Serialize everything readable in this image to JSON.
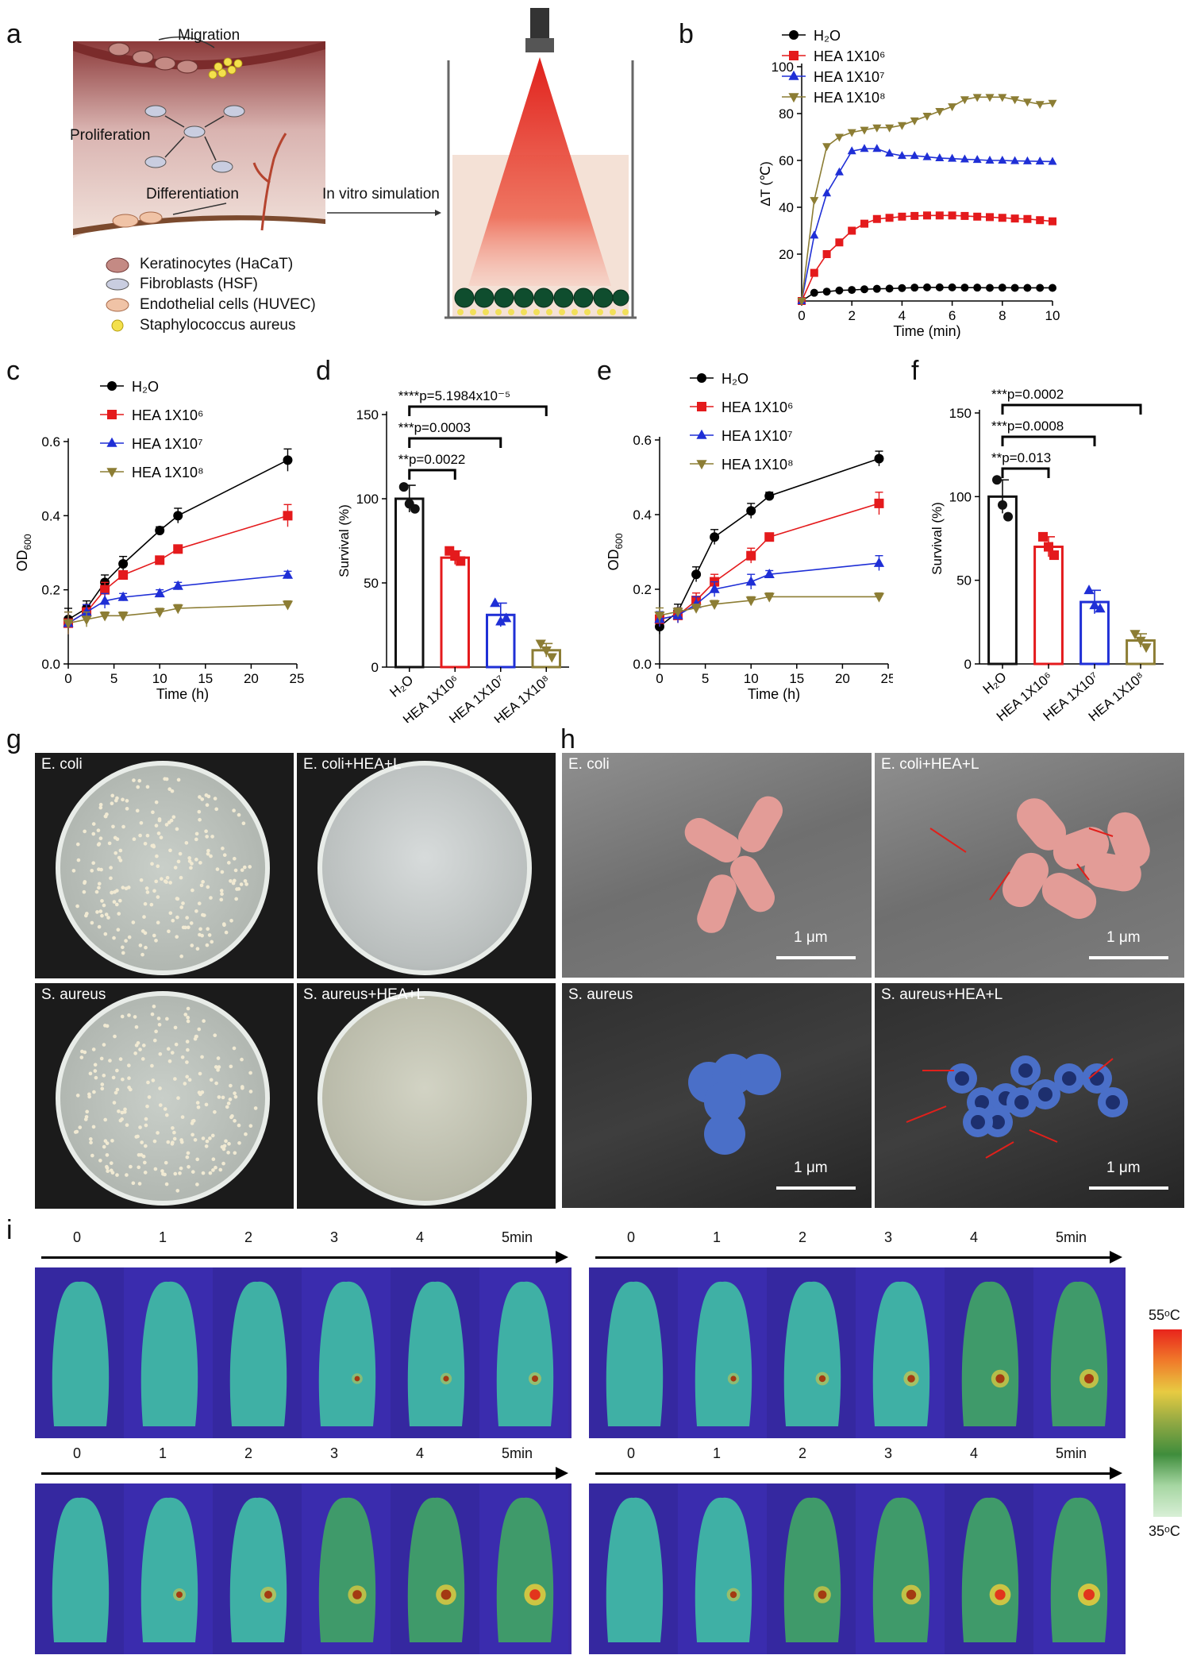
{
  "panels": {
    "a": "a",
    "b": "b",
    "c": "c",
    "d": "d",
    "e": "e",
    "f": "f",
    "g": "g",
    "h": "h",
    "i": "i"
  },
  "schematic": {
    "labels": {
      "migration": "Migration",
      "proliferation": "Proliferation",
      "differentiation": "Differentiation",
      "simulation": "In vitro simulation"
    },
    "legend": [
      {
        "name": "Keratinocytes (HaCaT)",
        "icon": "keratinocyte-icon"
      },
      {
        "name": "Fibroblasts (HSF)",
        "icon": "fibroblast-icon"
      },
      {
        "name": "Endothelial cells (HUVEC)",
        "icon": "endothelial-icon"
      },
      {
        "name": "Staphylococcus aureus",
        "icon": "bacteria-icon"
      }
    ]
  },
  "chart_b": {
    "type": "line",
    "xlabel": "Time (min)",
    "ylabel": "ΔT (℃)",
    "xlim": [
      0,
      10
    ],
    "ylim": [
      0,
      100
    ],
    "xticks": [
      0,
      2,
      4,
      6,
      8,
      10
    ],
    "yticks": [
      20,
      40,
      60,
      80,
      100
    ],
    "x": [
      0,
      0.5,
      1,
      1.5,
      2,
      2.5,
      3,
      3.5,
      4,
      4.5,
      5,
      5.5,
      6,
      6.5,
      7,
      7.5,
      8,
      8.5,
      9,
      9.5,
      10
    ],
    "series": [
      {
        "name": "H₂O",
        "color": "#000000",
        "marker": "circle",
        "values": [
          0,
          3.5,
          4,
          4.5,
          4.7,
          5,
          5.2,
          5.3,
          5.5,
          5.7,
          5.8,
          5.8,
          5.8,
          5.7,
          5.7,
          5.6,
          5.7,
          5.6,
          5.6,
          5.6,
          5.6
        ]
      },
      {
        "name": "HEA 1X10⁶",
        "color": "#e41a1c",
        "marker": "square",
        "values": [
          0,
          12,
          20,
          25,
          30,
          33,
          35,
          35.5,
          36,
          36.3,
          36.5,
          36.5,
          36.5,
          36.3,
          36,
          35.8,
          35.5,
          35.2,
          35,
          34.5,
          34
        ]
      },
      {
        "name": "HEA 1X10⁷",
        "color": "#1f2fd6",
        "marker": "triangle",
        "values": [
          0,
          28,
          46,
          55,
          64,
          65,
          65,
          63,
          62,
          62,
          61.5,
          61,
          60.8,
          60.5,
          60.3,
          60,
          60,
          59.8,
          59.7,
          59.6,
          59.5
        ]
      },
      {
        "name": "HEA 1X10⁸",
        "color": "#8c7d34",
        "marker": "triangle-down",
        "values": [
          0,
          43,
          66,
          70,
          72,
          73,
          74,
          74,
          75,
          77,
          79,
          81,
          83,
          86,
          87,
          87,
          87,
          86,
          85,
          84,
          84.5
        ]
      }
    ]
  },
  "chart_c": {
    "type": "line",
    "xlabel": "Time (h)",
    "ylabel": "OD600",
    "xlim": [
      0,
      25
    ],
    "ylim": [
      0,
      0.6
    ],
    "xticks": [
      0,
      5,
      10,
      15,
      20,
      25
    ],
    "yticks": [
      0.0,
      0.2,
      0.4,
      0.6
    ],
    "x": [
      0,
      2,
      4,
      6,
      10,
      12,
      24
    ],
    "series": [
      {
        "name": "H₂O",
        "color": "#000000",
        "marker": "circle",
        "values": [
          0.12,
          0.15,
          0.22,
          0.27,
          0.36,
          0.4,
          0.55
        ],
        "err": [
          0.03,
          0.02,
          0.02,
          0.02,
          0.01,
          0.02,
          0.03
        ]
      },
      {
        "name": "HEA 1X10⁶",
        "color": "#e41a1c",
        "marker": "square",
        "values": [
          0.11,
          0.14,
          0.2,
          0.24,
          0.28,
          0.31,
          0.4
        ],
        "err": [
          0.03,
          0.02,
          0.02,
          0.01,
          0.01,
          0.01,
          0.03
        ]
      },
      {
        "name": "HEA 1X10⁷",
        "color": "#1f2fd6",
        "marker": "triangle",
        "values": [
          0.11,
          0.14,
          0.17,
          0.18,
          0.19,
          0.21,
          0.24
        ],
        "err": [
          0.03,
          0.02,
          0.02,
          0.01,
          0.01,
          0.01,
          0.01
        ]
      },
      {
        "name": "HEA 1X10⁸",
        "color": "#8c7d34",
        "marker": "triangle-down",
        "values": [
          0.11,
          0.12,
          0.13,
          0.13,
          0.14,
          0.15,
          0.16
        ],
        "err": [
          0.03,
          0.02,
          0.01,
          0.01,
          0.01,
          0.01,
          0.01
        ]
      }
    ]
  },
  "chart_d": {
    "type": "bar",
    "ylabel": "Survival (%)",
    "ylim": [
      0,
      150
    ],
    "yticks": [
      0,
      50,
      100,
      150
    ],
    "categories": [
      "H₂O",
      "HEA 1X10⁶",
      "HEA 1X10⁷",
      "HEA 1X10⁸"
    ],
    "values": [
      100,
      65,
      31,
      10
    ],
    "err": [
      8,
      4,
      7,
      4
    ],
    "points": [
      [
        107,
        97,
        94
      ],
      [
        69,
        66,
        63
      ],
      [
        38,
        27,
        29
      ],
      [
        14,
        10,
        6
      ]
    ],
    "colors": [
      "#111111",
      "#e41a1c",
      "#1f2fd6",
      "#8c7d34"
    ],
    "markers": [
      "circle",
      "square",
      "triangle",
      "triangle-down"
    ],
    "significance": [
      {
        "from": 0,
        "to": 1,
        "label": "**p=0.0022"
      },
      {
        "from": 0,
        "to": 2,
        "label": "***p=0.0003"
      },
      {
        "from": 0,
        "to": 3,
        "label": "****p=5.1984x10⁻⁵"
      }
    ]
  },
  "chart_e": {
    "type": "line",
    "xlabel": "Time (h)",
    "ylabel": "OD600",
    "xlim": [
      0,
      25
    ],
    "ylim": [
      0,
      0.6
    ],
    "xticks": [
      0,
      5,
      10,
      15,
      20,
      25
    ],
    "yticks": [
      0.0,
      0.2,
      0.4,
      0.6
    ],
    "x": [
      0,
      2,
      4,
      6,
      10,
      12,
      24
    ],
    "series": [
      {
        "name": "H₂O",
        "color": "#000000",
        "marker": "circle",
        "values": [
          0.1,
          0.14,
          0.24,
          0.34,
          0.41,
          0.45,
          0.55
        ],
        "err": [
          0.02,
          0.02,
          0.02,
          0.02,
          0.02,
          0.01,
          0.02
        ]
      },
      {
        "name": "HEA 1X10⁶",
        "color": "#e41a1c",
        "marker": "square",
        "values": [
          0.12,
          0.13,
          0.17,
          0.22,
          0.29,
          0.34,
          0.43
        ],
        "err": [
          0.02,
          0.02,
          0.02,
          0.02,
          0.02,
          0.01,
          0.03
        ]
      },
      {
        "name": "HEA 1X10⁷",
        "color": "#1f2fd6",
        "marker": "triangle",
        "values": [
          0.12,
          0.13,
          0.16,
          0.2,
          0.22,
          0.24,
          0.27
        ],
        "err": [
          0.02,
          0.02,
          0.02,
          0.02,
          0.02,
          0.01,
          0.02
        ]
      },
      {
        "name": "HEA 1X10⁸",
        "color": "#8c7d34",
        "marker": "triangle-down",
        "values": [
          0.13,
          0.14,
          0.15,
          0.16,
          0.17,
          0.18,
          0.18
        ],
        "err": [
          0.02,
          0.01,
          0.01,
          0.01,
          0.01,
          0.01,
          0.01
        ]
      }
    ]
  },
  "chart_f": {
    "type": "bar",
    "ylabel": "Survival (%)",
    "ylim": [
      0,
      150
    ],
    "yticks": [
      0,
      50,
      100,
      150
    ],
    "categories": [
      "H₂O",
      "HEA 1X10⁶",
      "HEA 1X10⁷",
      "HEA 1X10⁸"
    ],
    "values": [
      100,
      70,
      37,
      14
    ],
    "err": [
      10,
      6,
      7,
      4
    ],
    "points": [
      [
        110,
        95,
        88
      ],
      [
        76,
        70,
        65
      ],
      [
        44,
        35,
        33
      ],
      [
        18,
        14,
        10
      ]
    ],
    "colors": [
      "#111111",
      "#e41a1c",
      "#1f2fd6",
      "#8c7d34"
    ],
    "markers": [
      "circle",
      "square",
      "triangle",
      "triangle-down"
    ],
    "significance": [
      {
        "from": 0,
        "to": 1,
        "label": "**p=0.013"
      },
      {
        "from": 0,
        "to": 2,
        "label": "***p=0.0008"
      },
      {
        "from": 0,
        "to": 3,
        "label": "***p=0.0002"
      }
    ]
  },
  "photos_g": [
    "E. coli",
    "E. coli+HEA+L",
    "S. aureus",
    "S. aureus+HEA+L"
  ],
  "photos_h": [
    "E. coli",
    "E. coli+HEA+L",
    "S. aureus",
    "S. aureus+HEA+L"
  ],
  "scale_bar": "1 μm",
  "thermal": {
    "times": [
      "0",
      "1",
      "2",
      "3",
      "4",
      "5min"
    ],
    "colorbar_max": "55ᵒC",
    "colorbar_min": "35ᵒC",
    "rows": [
      {
        "hot": [
          0,
          0,
          0,
          0.1,
          0.15,
          0.25
        ]
      },
      {
        "hot": [
          0,
          0.15,
          0.3,
          0.45,
          0.65,
          0.75
        ]
      },
      {
        "hot": [
          0,
          0.25,
          0.5,
          0.7,
          0.85,
          0.95
        ]
      },
      {
        "hot": [
          0,
          0.3,
          0.6,
          0.8,
          0.92,
          1.0
        ]
      }
    ]
  }
}
